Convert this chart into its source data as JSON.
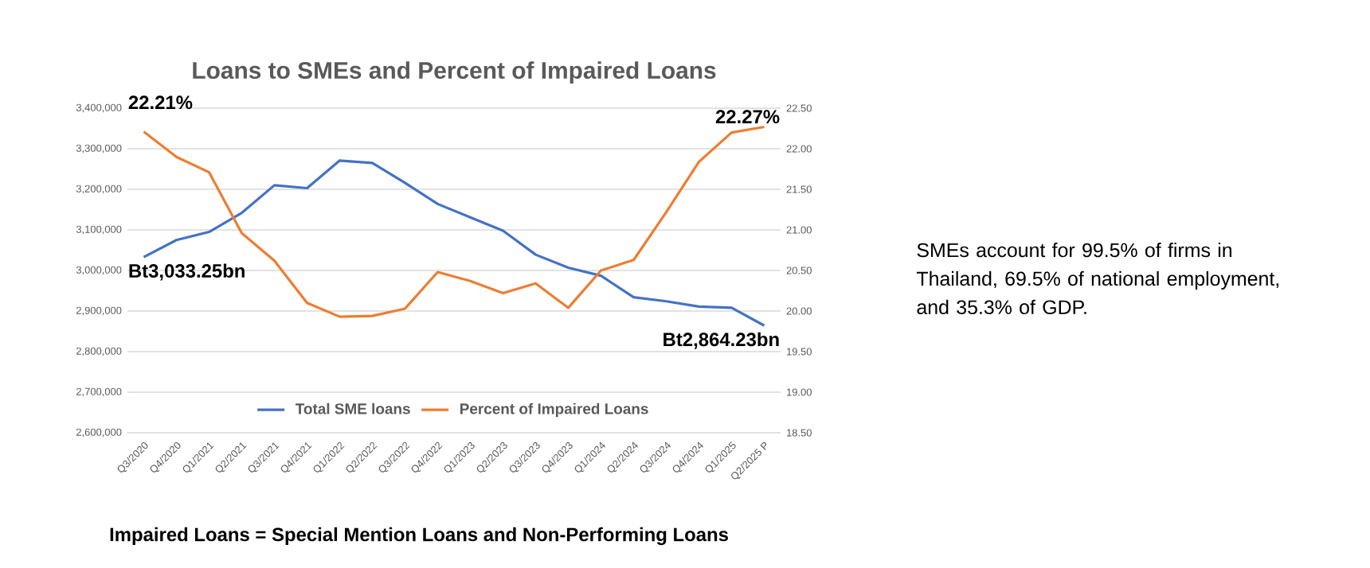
{
  "chart_data": {
    "type": "line",
    "title": "Loans to SMEs and Percent of Impaired Loans",
    "categories": [
      "Q3/2020",
      "Q4/2020",
      "Q1/2021",
      "Q2/2021",
      "Q3/2021",
      "Q4/2021",
      "Q1/2022",
      "Q2/2022",
      "Q3/2022",
      "Q4/2022",
      "Q1/2023",
      "Q2/2023",
      "Q3/2023",
      "Q4/2023",
      "Q1/2024",
      "Q2/2024",
      "Q3/2024",
      "Q4/2024",
      "Q1/2025",
      "Q2/2025 P"
    ],
    "series": [
      {
        "name": "Total SME loans",
        "color": "#4472c4",
        "values": [
          3033250,
          3075000,
          3095000,
          3142000,
          3210000,
          3203000,
          3271000,
          3265000,
          3216000,
          3164000,
          3131000,
          3098000,
          3039000,
          3007000,
          2987000,
          2934000,
          2924000,
          2911000,
          2908000,
          2864230
        ],
        "value_labels": [
          "Bt3,033.25bn",
          null,
          null,
          null,
          null,
          null,
          null,
          null,
          null,
          null,
          null,
          null,
          null,
          null,
          null,
          null,
          null,
          null,
          null,
          "Bt2,864.23bn"
        ]
      },
      {
        "name": "Percent of Impaired Loans",
        "color": "#ed7d31",
        "axis": "y2",
        "values": [
          22.21,
          21.9,
          21.71,
          20.96,
          20.62,
          20.1,
          19.93,
          19.94,
          20.03,
          20.48,
          20.37,
          20.22,
          20.34,
          20.04,
          20.5,
          20.63,
          21.22,
          21.84,
          22.2,
          22.27
        ],
        "value_labels": [
          "22.21%",
          null,
          null,
          null,
          null,
          null,
          null,
          null,
          null,
          null,
          null,
          null,
          null,
          null,
          null,
          null,
          null,
          null,
          null,
          "22.27%"
        ]
      }
    ],
    "ylim": [
      2600000,
      3400000
    ],
    "yticks": [
      {
        "value": 2600000,
        "label": "2,600,000"
      },
      {
        "value": 2700000,
        "label": "2,700,000"
      },
      {
        "value": 2800000,
        "label": "2,800,000"
      },
      {
        "value": 2900000,
        "label": "2,900,000"
      },
      {
        "value": 3000000,
        "label": "3,000,000"
      },
      {
        "value": 3100000,
        "label": "3,100,000"
      },
      {
        "value": 3200000,
        "label": "3,200,000"
      },
      {
        "value": 3300000,
        "label": "3,300,000"
      },
      {
        "value": 3400000,
        "label": "3,400,000"
      }
    ],
    "y2lim": [
      18.5,
      22.5
    ],
    "y2ticks": [
      {
        "value": 18.5,
        "label": "18.50"
      },
      {
        "value": 19,
        "label": "19.00"
      },
      {
        "value": 19.5,
        "label": "19.50"
      },
      {
        "value": 20,
        "label": "20.00"
      },
      {
        "value": 20.5,
        "label": "20.50"
      },
      {
        "value": 21,
        "label": "21.00"
      },
      {
        "value": 21.5,
        "label": "21.50"
      },
      {
        "value": 22,
        "label": "22.00"
      },
      {
        "value": 22.5,
        "label": "22.50"
      }
    ],
    "grid": "y",
    "legend": "bottom",
    "marker": "none",
    "line_style": "solid",
    "annotations": [
      "SMEs account for 99.5% of firms in Thailand, 69.5% of national employment, and 35.3% of GDP.",
      "Impaired Loans = Special Mention Loans and Non-Performing Loans"
    ]
  }
}
